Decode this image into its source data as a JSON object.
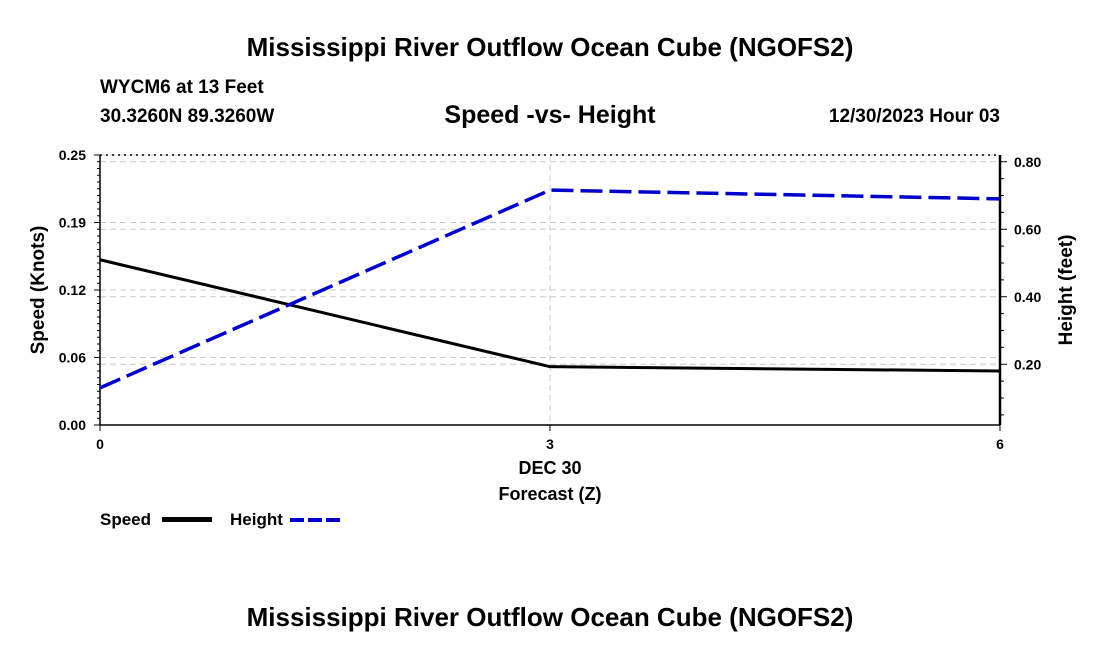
{
  "header": {
    "title": "Mississippi River Outflow Ocean Cube (NGOFS2)",
    "station": "WYCM6 at 13 Feet",
    "location": "30.3260N  89.3260W",
    "subtitle": "Speed -vs- Height",
    "datetime": "12/30/2023 Hour 03"
  },
  "footer": {
    "title": "Mississippi River Outflow Ocean Cube (NGOFS2)"
  },
  "chart_data": {
    "type": "line",
    "title": "Speed -vs- Height",
    "xlabel": "Forecast (Z)",
    "xdate": "DEC 30",
    "x": [
      0,
      3,
      6
    ],
    "xlim": [
      0,
      6
    ],
    "xticks": [
      "0",
      "3",
      "6"
    ],
    "y_left": {
      "label": "Speed (Knots)",
      "ylim": [
        0,
        0.25
      ],
      "ticks": [
        "0.00",
        "0.06",
        "0.12",
        "0.19",
        "0.25"
      ],
      "tick_values": [
        0,
        0.0625,
        0.125,
        0.1875,
        0.25
      ]
    },
    "y_right": {
      "label": "Height (feet)",
      "ylim": [
        0.02,
        0.82
      ],
      "ticks": [
        "0.20",
        "0.40",
        "0.60",
        "0.80"
      ],
      "tick_values": [
        0.2,
        0.4,
        0.6,
        0.8
      ]
    },
    "series": [
      {
        "name": "Speed",
        "axis": "left",
        "color": "#000000",
        "style": "solid",
        "points": [
          [
            0,
            0.153
          ],
          [
            3,
            0.054
          ],
          [
            6,
            0.05
          ]
        ]
      },
      {
        "name": "Height",
        "axis": "right",
        "color": "#0000cc",
        "style": "dashed",
        "points": [
          [
            0,
            0.13
          ],
          [
            3,
            0.716
          ],
          [
            6,
            0.69
          ]
        ]
      }
    ],
    "grid": true,
    "legend": "bottom-left"
  }
}
